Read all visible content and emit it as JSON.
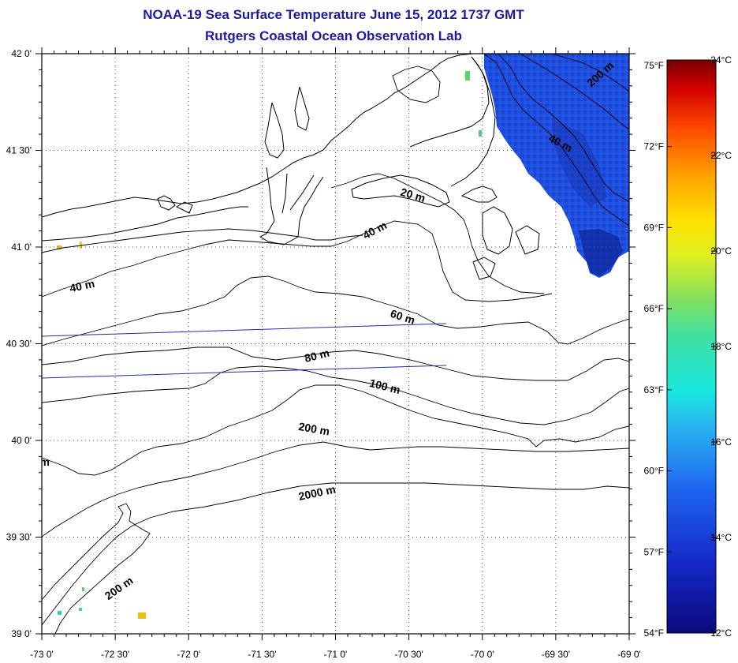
{
  "title": "NOAA-19 Sea Surface Temperature June 15, 2012 1737 GMT",
  "subtitle": "Rutgers Coastal Ocean Observation Lab",
  "map": {
    "lon_labels": [
      "-73 0'",
      "-72 30'",
      "-72 0'",
      "-71 30'",
      "-71 0'",
      "-70 30'",
      "-70 0'",
      "-69 30'",
      "-69 0'"
    ],
    "lat_labels": [
      "42 0'",
      "41 30'",
      "41 0'",
      "40 30'",
      "40 0'",
      "39 30'",
      "39 0'"
    ],
    "contour_labels": [
      {
        "text": "200 m",
        "lon": -69.18,
        "lat": 41.88,
        "angle": -42
      },
      {
        "text": "40 m",
        "lon": -69.48,
        "lat": 41.52,
        "angle": 28
      },
      {
        "text": "20 m",
        "lon": -70.48,
        "lat": 41.25,
        "angle": 16
      },
      {
        "text": "40 m",
        "lon": -70.72,
        "lat": 41.07,
        "angle": -28
      },
      {
        "text": "40 m",
        "lon": -72.72,
        "lat": 40.78,
        "angle": -12
      },
      {
        "text": "60 m",
        "lon": -70.55,
        "lat": 40.62,
        "angle": 18
      },
      {
        "text": "80 m",
        "lon": -71.12,
        "lat": 40.42,
        "angle": -14
      },
      {
        "text": "100 m",
        "lon": -70.67,
        "lat": 40.26,
        "angle": 14
      },
      {
        "text": "200 m",
        "lon": -71.15,
        "lat": 40.04,
        "angle": 10
      },
      {
        "text": "2000 m",
        "lon": -71.12,
        "lat": 39.71,
        "angle": -12
      },
      {
        "text": "200 m",
        "lon": -72.46,
        "lat": 39.22,
        "angle": -35
      },
      {
        "text": "m",
        "lon": -72.98,
        "lat": 39.87,
        "angle": 0
      }
    ]
  },
  "colorbar": {
    "celsius_labels": [
      "24°C",
      "22°C",
      "20°C",
      "18°C",
      "16°C",
      "14°C",
      "12°C"
    ],
    "fahrenheit_labels": [
      "75°F",
      "72°F",
      "69°F",
      "66°F",
      "63°F",
      "60°F",
      "57°F",
      "54°F"
    ],
    "min_c": 12,
    "max_c": 24,
    "min_f": 54,
    "max_f": 75.2,
    "celsius_values": [
      24,
      22,
      20,
      18,
      16,
      14,
      12
    ],
    "fahrenheit_values": [
      75,
      72,
      69,
      66,
      63,
      60,
      57,
      54
    ]
  },
  "colors": {
    "title": "#1a1aa6",
    "sst_primary": "#1e46d8",
    "sst_dark": "#0f2aa0",
    "track_line": "#1c2fa8"
  }
}
